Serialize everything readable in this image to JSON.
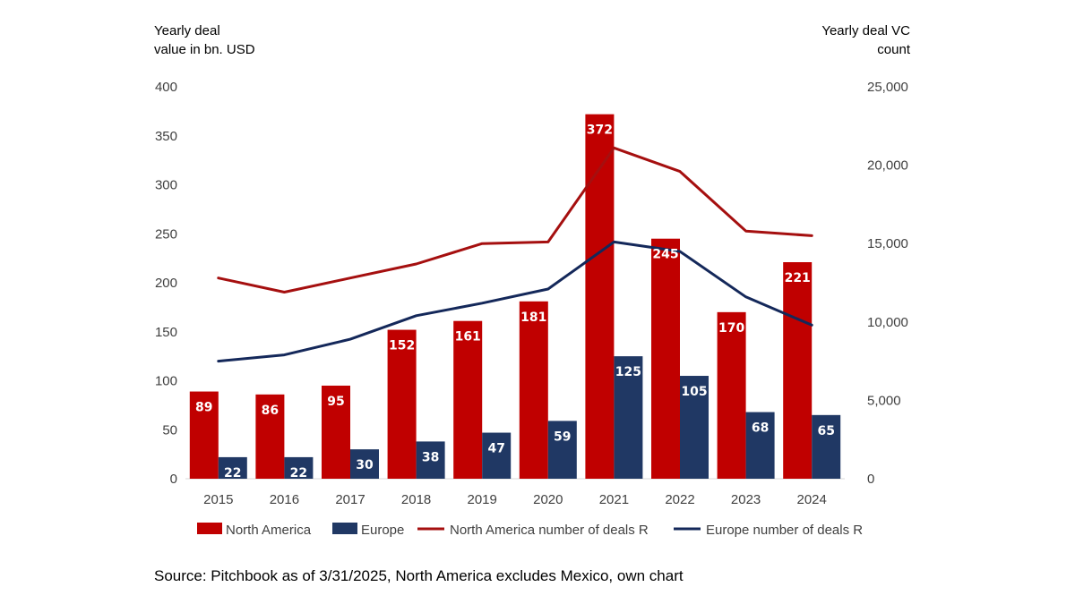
{
  "chart_data": {
    "type": "bar",
    "categories": [
      "2015",
      "2016",
      "2017",
      "2018",
      "2019",
      "2020",
      "2021",
      "2022",
      "2023",
      "2024"
    ],
    "series": [
      {
        "name": "North America",
        "kind": "bar",
        "axis": "left",
        "color": "#C00000",
        "values": [
          89,
          86,
          95,
          152,
          161,
          181,
          372,
          245,
          170,
          221
        ]
      },
      {
        "name": "Europe",
        "kind": "bar",
        "axis": "left",
        "color": "#203864",
        "values": [
          22,
          22,
          30,
          38,
          47,
          59,
          125,
          105,
          68,
          65
        ]
      },
      {
        "name": "North America number of deals R",
        "kind": "line",
        "axis": "right",
        "color": "#A50F0F",
        "values": [
          12800,
          11900,
          12800,
          13700,
          15000,
          15100,
          21100,
          19600,
          15800,
          15500
        ]
      },
      {
        "name": "Europe number of deals R",
        "kind": "line",
        "axis": "right",
        "color": "#14285A",
        "values": [
          7500,
          7900,
          8900,
          10400,
          11200,
          12100,
          15100,
          14500,
          11600,
          9800
        ]
      }
    ],
    "left_axis": {
      "title_line1": "Yearly deal",
      "title_line2": "value in bn. USD",
      "ylim": [
        0,
        400
      ],
      "ticks": [
        0,
        50,
        100,
        150,
        200,
        250,
        300,
        350,
        400
      ],
      "tick_labels": [
        "0",
        "50",
        "100",
        "150",
        "200",
        "250",
        "300",
        "350",
        "400"
      ]
    },
    "right_axis": {
      "title_line1": "Yearly deal VC",
      "title_line2": "count",
      "ylim": [
        0,
        25000
      ],
      "ticks": [
        0,
        5000,
        10000,
        15000,
        20000,
        25000
      ],
      "tick_labels": [
        "0",
        "5,000",
        "10,000",
        "15,000",
        "20,000",
        "25,000"
      ]
    },
    "grid": false,
    "legend_position": "bottom",
    "source": "Source: Pitchbook as of 3/31/2025, North America excludes Mexico, own chart"
  }
}
